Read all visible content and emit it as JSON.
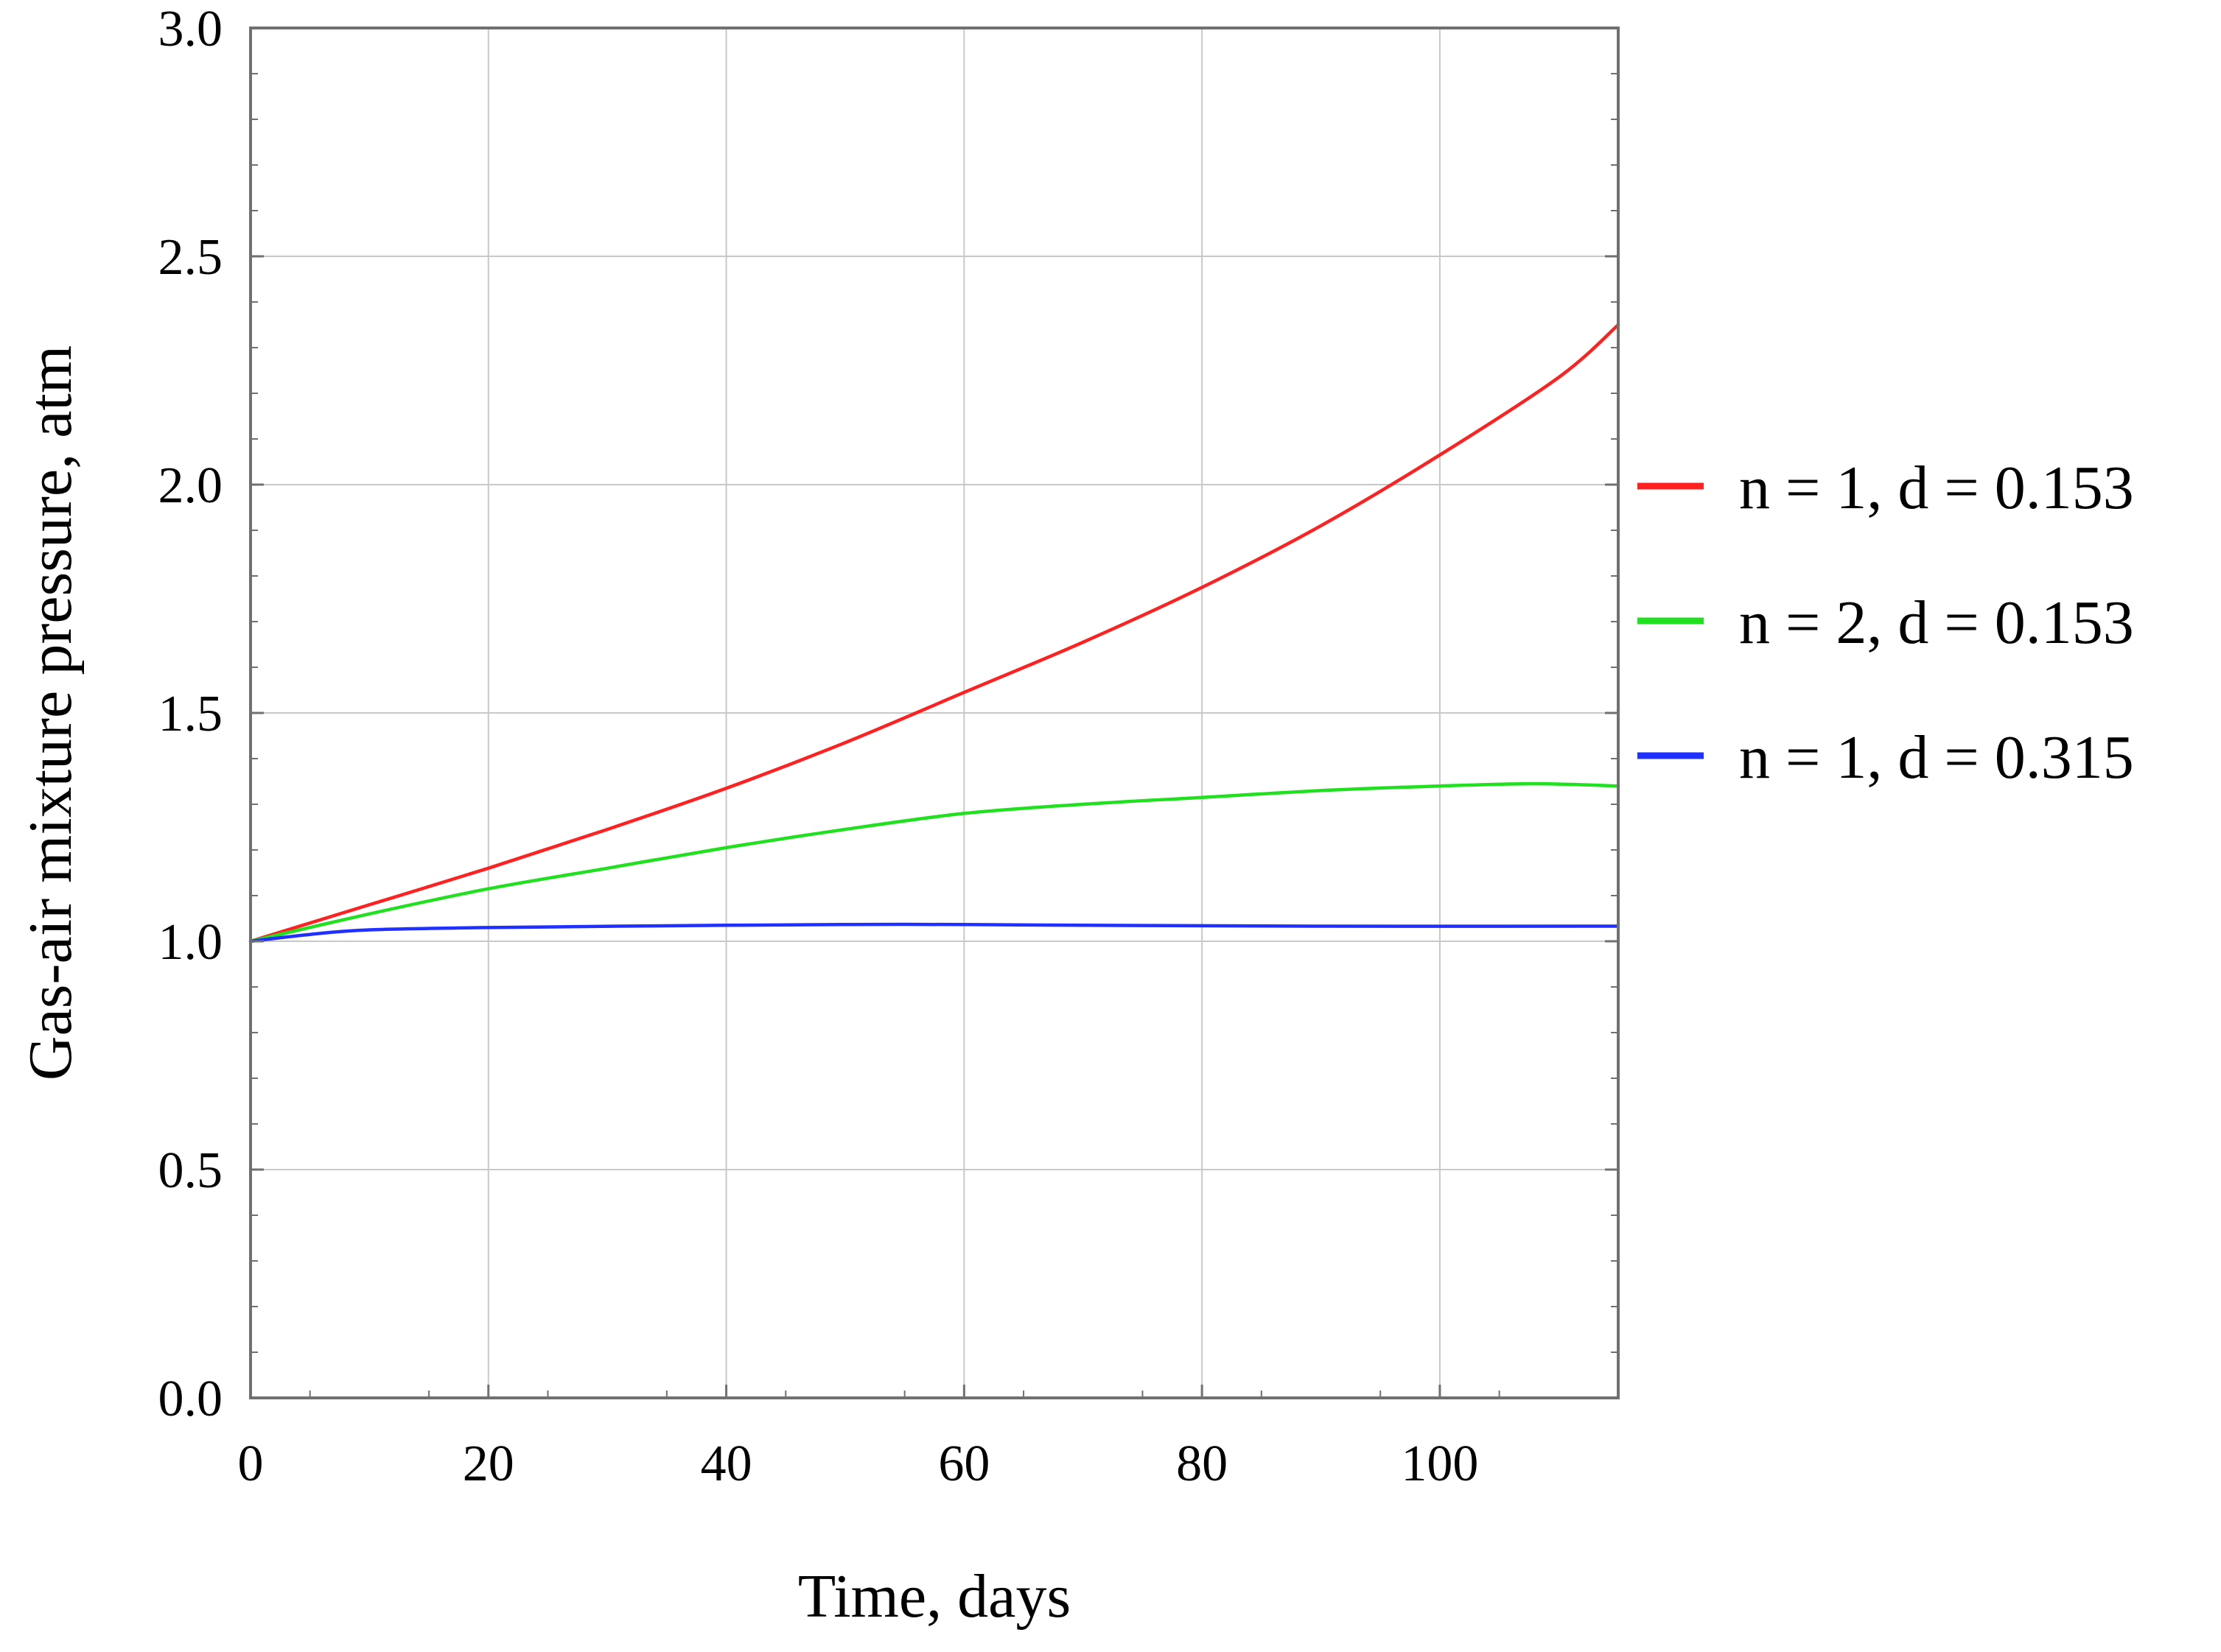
{
  "chart_data": {
    "type": "line",
    "title": "",
    "xlabel": "Time, days",
    "ylabel": "Gas-air mixture pressure, atm",
    "xlim": [
      0,
      115
    ],
    "ylim": [
      0,
      3
    ],
    "x_ticks": [
      0,
      20,
      40,
      60,
      80,
      100
    ],
    "x_tick_labels": [
      "0",
      "20",
      "40",
      "60",
      "80",
      "100"
    ],
    "y_ticks": [
      0,
      0.5,
      1,
      1.5,
      2,
      2.5,
      3
    ],
    "y_tick_labels": [
      "0.0",
      "0.5",
      "1.0",
      "1.5",
      "2.0",
      "2.5",
      "3.0"
    ],
    "grid": true,
    "legend_position": "right",
    "series": [
      {
        "name": "n = 1, d = 0.153",
        "color": "#ff2020",
        "x": [
          0,
          10,
          20,
          30,
          40,
          50,
          60,
          70,
          80,
          90,
          100,
          110,
          115
        ],
        "y": [
          1.0,
          1.08,
          1.16,
          1.245,
          1.335,
          1.435,
          1.545,
          1.655,
          1.775,
          1.91,
          2.065,
          2.235,
          2.35
        ]
      },
      {
        "name": "n = 2, d = 0.153",
        "color": "#20e020",
        "x": [
          0,
          10,
          20,
          30,
          40,
          50,
          60,
          70,
          80,
          90,
          100,
          108,
          115
        ],
        "y": [
          1.0,
          1.06,
          1.115,
          1.16,
          1.205,
          1.245,
          1.28,
          1.3,
          1.315,
          1.33,
          1.34,
          1.345,
          1.34
        ]
      },
      {
        "name": "n = 1, d = 0.315",
        "color": "#2030ff",
        "x": [
          0,
          5,
          10,
          20,
          40,
          55,
          70,
          90,
          115
        ],
        "y": [
          1.0,
          1.015,
          1.025,
          1.03,
          1.035,
          1.037,
          1.035,
          1.033,
          1.033
        ]
      }
    ]
  }
}
